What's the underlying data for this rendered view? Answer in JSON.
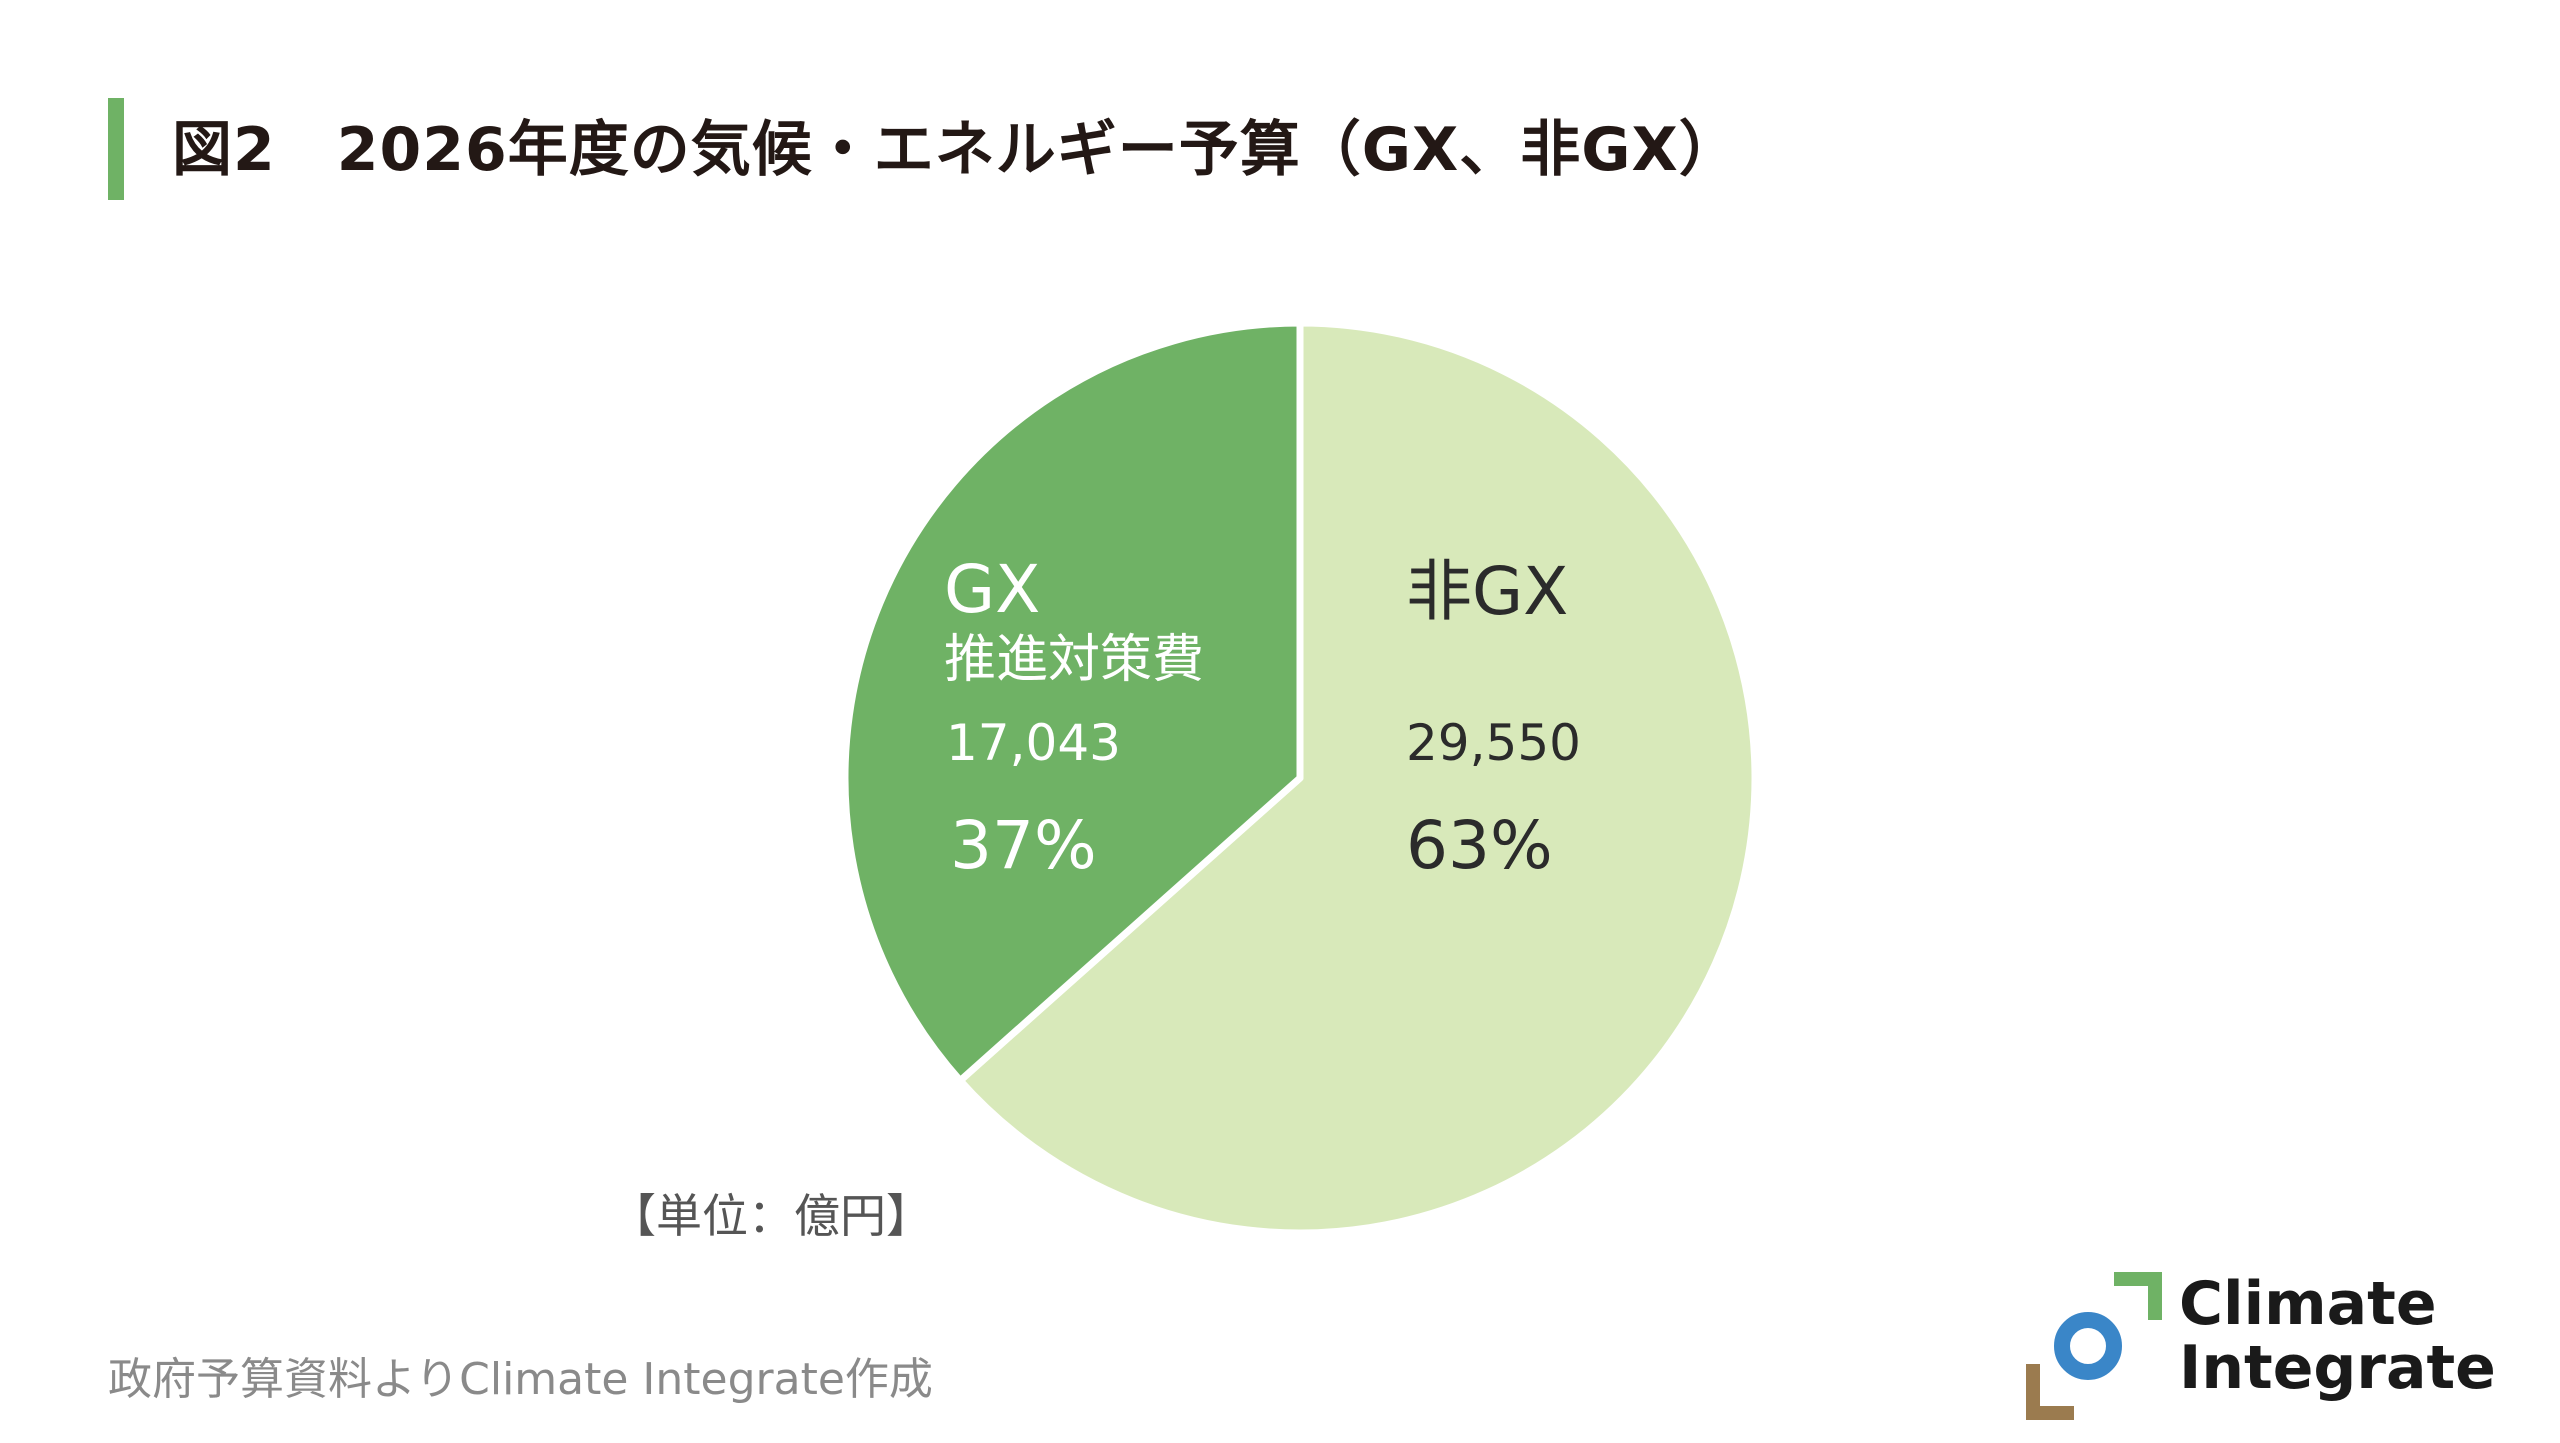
{
  "title": "図2　2026年度の気候・エネルギー予算（GX、非GX）",
  "chart_data": {
    "type": "pie",
    "title": "図2　2026年度の気候・エネルギー予算（GX、非GX）",
    "unit_note": "【単位：億円】",
    "slices": [
      {
        "name": "非GX",
        "subtitle": "",
        "value": 29550,
        "value_label": "29,550",
        "percent_label": "63%",
        "color": "#d8e9ba"
      },
      {
        "name": "GX",
        "subtitle": "推進対策費",
        "value": 17043,
        "value_label": "17,043",
        "percent_label": "37%",
        "color": "#6fb265"
      }
    ],
    "start": "12 o'clock",
    "direction": "clockwise"
  },
  "source": "政府予算資料よりClimate Integrate作成",
  "logo": {
    "line1": "Climate",
    "line2": "Integrate"
  },
  "colors": {
    "accent": "#6fb265",
    "light": "#d8e9ba",
    "logo_green": "#6fb265",
    "logo_blue": "#3a86c8",
    "logo_brown": "#9b7b4f"
  }
}
